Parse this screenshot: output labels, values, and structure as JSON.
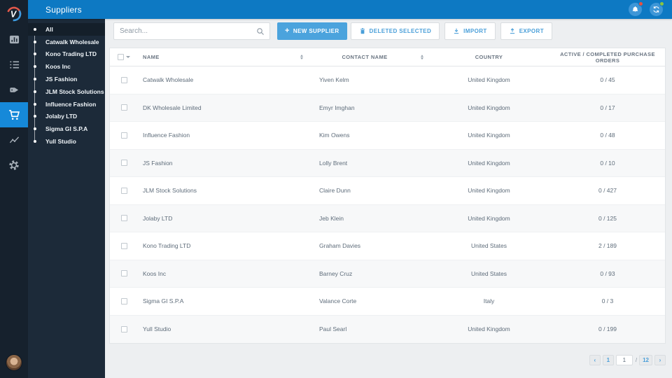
{
  "app": {
    "title": "Suppliers"
  },
  "iconbar": {
    "logo": "v-logo",
    "items": [
      "dashboard",
      "orders-list",
      "products-tag",
      "purchasing-cart",
      "reports-trend",
      "settings-gear"
    ],
    "active": "purchasing-cart"
  },
  "topbar": {
    "icons": [
      {
        "name": "notifications-bell",
        "badge_color": "#e8503f"
      },
      {
        "name": "sync-refresh",
        "badge_color": "#8bc540"
      }
    ]
  },
  "sidebar": {
    "active": "All",
    "items": [
      "All",
      "Catwalk Wholesale",
      "Kono Trading LTD",
      "Koos Inc",
      "JS Fashion",
      "JLM Stock Solutions",
      "Influence Fashion",
      "Jolaby LTD",
      "Sigma GI S.P.A",
      "Yull Studio"
    ]
  },
  "toolbar": {
    "search_placeholder": "Search...",
    "new_supplier_label": "NEW SUPPLIER",
    "delete_selected_label": "DELETED SELECTED",
    "import_label": "IMPORT",
    "export_label": "EXPORT"
  },
  "table": {
    "columns": [
      "NAME",
      "CONTACT NAME",
      "COUNTRY",
      "ACTIVE / COMPLETED PURCHASE ORDERS"
    ],
    "rows": [
      {
        "name": "Catwalk Wholesale",
        "contact": "Yiven Kelm",
        "country": "United Kingdom",
        "orders": "0 / 45"
      },
      {
        "name": "DK Wholesale Limited",
        "contact": "Emyr Imghan",
        "country": "United Kingdom",
        "orders": "0 / 17"
      },
      {
        "name": "Influence Fashion",
        "contact": "Kim Owens",
        "country": "United Kingdom",
        "orders": "0 / 48"
      },
      {
        "name": "JS Fashion",
        "contact": "Lolly Brent",
        "country": "United Kingdom",
        "orders": "0 / 10"
      },
      {
        "name": "JLM Stock Solutions",
        "contact": "Claire Dunn",
        "country": "United Kingdom",
        "orders": "0 / 427"
      },
      {
        "name": "Jolaby LTD",
        "contact": "Jeb Klein",
        "country": "United Kingdom",
        "orders": "0 / 125"
      },
      {
        "name": "Kono Trading LTD",
        "contact": "Graham Davies",
        "country": "United States",
        "orders": "2 / 189"
      },
      {
        "name": "Koos Inc",
        "contact": "Barney Cruz",
        "country": "United States",
        "orders": "0 / 93"
      },
      {
        "name": "Sigma GI S.P.A",
        "contact": "Valance Corte",
        "country": "Italy",
        "orders": "0 / 3"
      },
      {
        "name": "Yull Studio",
        "contact": "Paul Searl",
        "country": "United Kingdom",
        "orders": "0 / 199"
      }
    ]
  },
  "pagination": {
    "prev_label": "‹",
    "page_one": "1",
    "current_page": "1",
    "separator": "/",
    "total_pages": "12",
    "next_label": "›"
  },
  "colors": {
    "topbar_blue": "#0d79c3",
    "iconbar_bg": "#16212d",
    "sidebar_bg": "#1c2a39",
    "active_nav_blue": "#1689d9",
    "primary_button": "#4ba3dd",
    "link_blue": "#4a9fd9",
    "content_bg": "#edeff1",
    "text_gray": "#5e6c7a",
    "badge_red": "#e8503f",
    "badge_green": "#8bc540"
  }
}
